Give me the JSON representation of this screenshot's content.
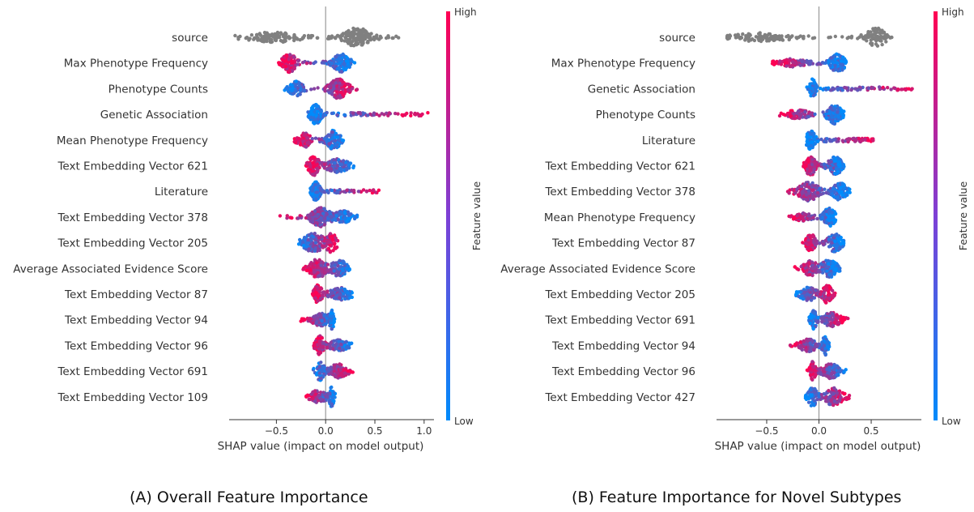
{
  "chart_data": [
    {
      "type": "scatter",
      "subtype": "shap-beeswarm",
      "caption": "(A) Overall Feature Importance",
      "xlabel": "SHAP value (impact on model output)",
      "xlim": [
        -0.98,
        1.1
      ],
      "xticks": [
        -0.5,
        0.0,
        0.5,
        1.0
      ],
      "xtick_labels": [
        "−0.5",
        "0.0",
        "0.5",
        "1.0"
      ],
      "colorbar": {
        "label": "Feature value",
        "high": "High",
        "low": "Low",
        "color_high": "#ff0052",
        "color_low": "#008bfb"
      },
      "gray_color": "#808080",
      "features": [
        {
          "name": "source",
          "min": -0.92,
          "max": 0.74,
          "gray": true,
          "peaks": [
            [
              -0.52,
              0.18,
              0.45
            ],
            [
              0.32,
              0.1,
              1.0
            ]
          ],
          "dens": 1.0,
          "tail": "low"
        },
        {
          "name": "Max Phenotype Frequency",
          "min": -0.5,
          "max": 0.3,
          "peaks": [
            [
              -0.37,
              0.05,
              1.0
            ],
            [
              0.16,
              0.06,
              0.95
            ]
          ],
          "dens": 0.8,
          "tail": "low"
        },
        {
          "name": "Phenotype Counts",
          "min": -0.42,
          "max": 0.36,
          "peaks": [
            [
              -0.3,
              0.05,
              0.7
            ],
            [
              0.13,
              0.07,
              0.95
            ]
          ],
          "dens": 0.75,
          "tail": "high"
        },
        {
          "name": "Genetic Association",
          "min": -0.18,
          "max": 1.05,
          "peaks": [
            [
              -0.1,
              0.04,
              0.85
            ]
          ],
          "dens": 0.6,
          "tail": "high"
        },
        {
          "name": "Mean Phenotype Frequency",
          "min": -0.32,
          "max": 0.18,
          "peaks": [
            [
              -0.22,
              0.05,
              0.6
            ],
            [
              0.08,
              0.05,
              0.8
            ]
          ],
          "dens": 0.6,
          "tail": "low"
        },
        {
          "name": "Text Embedding Vector 621",
          "min": -0.2,
          "max": 0.3,
          "peaks": [
            [
              -0.12,
              0.04,
              0.85
            ],
            [
              0.12,
              0.08,
              0.55
            ]
          ],
          "dens": 0.55,
          "tail": "low"
        },
        {
          "name": "Literature",
          "min": -0.16,
          "max": 0.55,
          "peaks": [
            [
              -0.1,
              0.03,
              0.75
            ]
          ],
          "dens": 0.5,
          "tail": "high"
        },
        {
          "name": "Text Embedding Vector 378",
          "min": -0.48,
          "max": 0.32,
          "peaks": [
            [
              -0.05,
              0.07,
              1.0
            ],
            [
              0.18,
              0.06,
              0.6
            ]
          ],
          "dens": 1.0,
          "tail": "low"
        },
        {
          "name": "Text Embedding Vector 205",
          "min": -0.28,
          "max": 0.14,
          "peaks": [
            [
              -0.12,
              0.08,
              0.6
            ],
            [
              0.06,
              0.04,
              0.55
            ]
          ],
          "dens": 0.6,
          "tail": "high"
        },
        {
          "name": "Average Associated Evidence Score",
          "min": -0.24,
          "max": 0.26,
          "peaks": [
            [
              -0.08,
              0.06,
              0.85
            ],
            [
              0.14,
              0.06,
              0.7
            ]
          ],
          "dens": 0.7,
          "tail": "low"
        },
        {
          "name": "Text Embedding Vector 87",
          "min": -0.14,
          "max": 0.27,
          "peaks": [
            [
              -0.08,
              0.03,
              0.75
            ],
            [
              0.15,
              0.08,
              0.45
            ]
          ],
          "dens": 0.5,
          "tail": "low"
        },
        {
          "name": "Text Embedding Vector 94",
          "min": -0.28,
          "max": 0.1,
          "peaks": [
            [
              -0.05,
              0.05,
              0.4
            ],
            [
              0.06,
              0.02,
              0.55
            ]
          ],
          "dens": 0.45,
          "tail": "low"
        },
        {
          "name": "Text Embedding Vector 96",
          "min": -0.14,
          "max": 0.27,
          "peaks": [
            [
              -0.06,
              0.03,
              0.8
            ],
            [
              0.14,
              0.07,
              0.4
            ]
          ],
          "dens": 0.5,
          "tail": "low"
        },
        {
          "name": "Text Embedding Vector 691",
          "min": -0.16,
          "max": 0.28,
          "peaks": [
            [
              -0.06,
              0.03,
              0.7
            ],
            [
              0.12,
              0.07,
              0.5
            ]
          ],
          "dens": 0.5,
          "tail": "high"
        },
        {
          "name": "Text Embedding Vector 109",
          "min": -0.2,
          "max": 0.1,
          "peaks": [
            [
              -0.08,
              0.06,
              0.4
            ],
            [
              0.06,
              0.02,
              0.65
            ]
          ],
          "dens": 0.45,
          "tail": "low"
        }
      ]
    },
    {
      "type": "scatter",
      "subtype": "shap-beeswarm",
      "caption": "(B) Feature Importance for Novel Subtypes",
      "xlabel": "SHAP value (impact on model output)",
      "xlim": [
        -0.98,
        0.98
      ],
      "xticks": [
        -0.5,
        0.0,
        0.5
      ],
      "xtick_labels": [
        "−0.5",
        "0.0",
        "0.5"
      ],
      "colorbar": {
        "label": "Feature value",
        "high": "High",
        "low": "Low",
        "color_high": "#ff0052",
        "color_low": "#008bfb"
      },
      "gray_color": "#808080",
      "features": [
        {
          "name": "source",
          "min": -0.88,
          "max": 0.72,
          "gray": true,
          "peaks": [
            [
              -0.55,
              0.18,
              0.35
            ],
            [
              0.55,
              0.07,
              1.0
            ]
          ],
          "dens": 0.6,
          "tail": "low"
        },
        {
          "name": "Max Phenotype Frequency",
          "min": -0.45,
          "max": 0.26,
          "peaks": [
            [
              -0.25,
              0.08,
              0.3
            ],
            [
              0.18,
              0.05,
              0.9
            ]
          ],
          "dens": 0.6,
          "tail": "low"
        },
        {
          "name": "Genetic Association",
          "min": -0.12,
          "max": 0.9,
          "peaks": [
            [
              -0.06,
              0.02,
              0.65
            ]
          ],
          "dens": 0.4,
          "tail": "high"
        },
        {
          "name": "Phenotype Counts",
          "min": -0.38,
          "max": 0.24,
          "peaks": [
            [
              -0.2,
              0.08,
              0.3
            ],
            [
              0.15,
              0.05,
              0.85
            ]
          ],
          "dens": 0.55,
          "tail": "low"
        },
        {
          "name": "Literature",
          "min": -0.12,
          "max": 0.52,
          "peaks": [
            [
              -0.08,
              0.03,
              0.5
            ]
          ],
          "dens": 0.4,
          "tail": "high"
        },
        {
          "name": "Text Embedding Vector 621",
          "min": -0.18,
          "max": 0.24,
          "peaks": [
            [
              -0.08,
              0.04,
              0.75
            ],
            [
              0.16,
              0.05,
              0.7
            ]
          ],
          "dens": 0.65,
          "tail": "low"
        },
        {
          "name": "Text Embedding Vector 378",
          "min": -0.38,
          "max": 0.3,
          "peaks": [
            [
              -0.1,
              0.07,
              0.9
            ],
            [
              0.2,
              0.05,
              0.8
            ]
          ],
          "dens": 0.8,
          "tail": "low"
        },
        {
          "name": "Mean Phenotype Frequency",
          "min": -0.3,
          "max": 0.16,
          "peaks": [
            [
              -0.15,
              0.06,
              0.25
            ],
            [
              0.1,
              0.04,
              0.85
            ]
          ],
          "dens": 0.5,
          "tail": "low"
        },
        {
          "name": "Text Embedding Vector 87",
          "min": -0.16,
          "max": 0.24,
          "peaks": [
            [
              -0.08,
              0.03,
              0.6
            ],
            [
              0.15,
              0.05,
              0.55
            ]
          ],
          "dens": 0.5,
          "tail": "low"
        },
        {
          "name": "Average Associated Evidence Score",
          "min": -0.25,
          "max": 0.2,
          "peaks": [
            [
              -0.08,
              0.05,
              0.55
            ],
            [
              0.1,
              0.05,
              0.75
            ]
          ],
          "dens": 0.6,
          "tail": "low"
        },
        {
          "name": "Text Embedding Vector 205",
          "min": -0.25,
          "max": 0.16,
          "peaks": [
            [
              -0.1,
              0.06,
              0.4
            ],
            [
              0.08,
              0.03,
              0.6
            ]
          ],
          "dens": 0.5,
          "tail": "high"
        },
        {
          "name": "Text Embedding Vector 691",
          "min": -0.1,
          "max": 0.28,
          "peaks": [
            [
              -0.05,
              0.02,
              0.55
            ],
            [
              0.12,
              0.06,
              0.4
            ]
          ],
          "dens": 0.45,
          "tail": "high"
        },
        {
          "name": "Text Embedding Vector 94",
          "min": -0.28,
          "max": 0.1,
          "peaks": [
            [
              -0.1,
              0.06,
              0.3
            ],
            [
              0.06,
              0.02,
              0.5
            ]
          ],
          "dens": 0.45,
          "tail": "low"
        },
        {
          "name": "Text Embedding Vector 96",
          "min": -0.12,
          "max": 0.26,
          "peaks": [
            [
              -0.06,
              0.02,
              0.55
            ],
            [
              0.12,
              0.06,
              0.4
            ]
          ],
          "dens": 0.45,
          "tail": "low"
        },
        {
          "name": "Text Embedding Vector 427",
          "min": -0.14,
          "max": 0.3,
          "peaks": [
            [
              -0.06,
              0.03,
              0.6
            ],
            [
              0.14,
              0.06,
              0.55
            ]
          ],
          "dens": 0.5,
          "tail": "high"
        }
      ]
    }
  ]
}
